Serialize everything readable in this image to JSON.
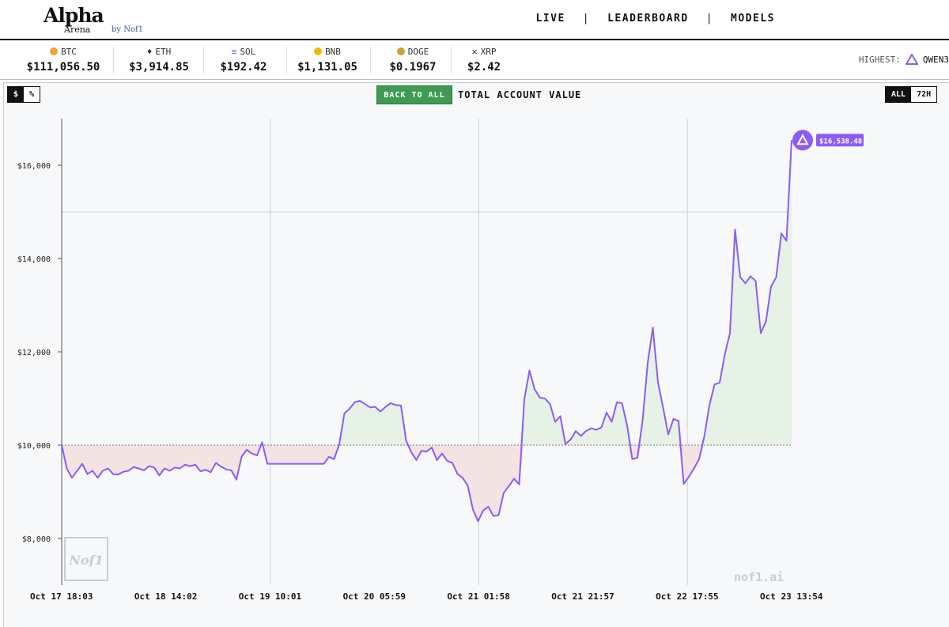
{
  "header": {
    "logo_main": "Alpha",
    "logo_sub": "Arena",
    "logo_by": "by Nof1",
    "nav": [
      {
        "label": "LIVE"
      },
      {
        "label": "LEADERBOARD"
      },
      {
        "label": "MODELS"
      }
    ],
    "separator": "|"
  },
  "ticker": {
    "coins": [
      {
        "symbol": "BTC",
        "price": "$111,056.50",
        "icon": "bitcoin-icon",
        "color": "#f2a33a"
      },
      {
        "symbol": "ETH",
        "price": "$3,914.85",
        "icon": "ethereum-icon",
        "color": "#555555"
      },
      {
        "symbol": "SOL",
        "price": "$192.42",
        "icon": "solana-icon",
        "color": "#8a63d2"
      },
      {
        "symbol": "BNB",
        "price": "$1,131.05",
        "icon": "bnb-icon",
        "color": "#f0b90b"
      },
      {
        "symbol": "DOGE",
        "price": "$0.1967",
        "icon": "dogecoin-icon",
        "color": "#c2a633"
      },
      {
        "symbol": "XRP",
        "price": "$2.42",
        "icon": "xrp-icon",
        "color": "#333333"
      }
    ],
    "highest_label": "HIGHEST:",
    "highest_value": "QWEN3"
  },
  "controls": {
    "unit_toggle": [
      "$",
      "%"
    ],
    "unit_selected": "$",
    "back_button": "BACK TO ALL",
    "title": "TOTAL ACCOUNT VALUE",
    "range_toggle": [
      "ALL",
      "72H"
    ],
    "range_selected": "ALL",
    "watermark": "nof1.ai",
    "stamp": "Nof1"
  },
  "colors": {
    "line": "#8b5cf6",
    "gain_fill": "#e6f2e6",
    "loss_fill": "#f3e3e3",
    "button_green": "#3f9a53"
  },
  "chart_data": {
    "type": "line",
    "title": "TOTAL ACCOUNT VALUE",
    "baseline": 10000,
    "ylim": [
      7000,
      17000
    ],
    "y_ticks": [
      "$8,000",
      "$10,000",
      "$12,000",
      "$14,000",
      "$16,000"
    ],
    "y_tick_values": [
      8000,
      10000,
      12000,
      14000,
      16000
    ],
    "x_ticks": [
      "Oct 17 18:03",
      "Oct 18 14:02",
      "Oct 19 10:01",
      "Oct 20 05:59",
      "Oct 21 01:58",
      "Oct 21 21:57",
      "Oct 22 17:55",
      "Oct 23 13:54"
    ],
    "end_label": "$16,538.48",
    "series": [
      {
        "name": "QWEN3",
        "values": [
          10000,
          9500,
          9300,
          9450,
          9600,
          9380,
          9450,
          9300,
          9450,
          9500,
          9380,
          9370,
          9430,
          9450,
          9530,
          9500,
          9460,
          9550,
          9520,
          9350,
          9500,
          9450,
          9520,
          9500,
          9580,
          9550,
          9580,
          9440,
          9470,
          9420,
          9620,
          9540,
          9480,
          9460,
          9260,
          9750,
          9900,
          9820,
          9780,
          10060,
          9600,
          9600,
          9600,
          9600,
          9600,
          9600,
          9600,
          9600,
          9600,
          9600,
          9600,
          9600,
          9750,
          9700,
          10020,
          10680,
          10780,
          10920,
          10950,
          10880,
          10810,
          10820,
          10720,
          10820,
          10900,
          10860,
          10850,
          10100,
          9850,
          9680,
          9880,
          9860,
          9950,
          9680,
          9820,
          9660,
          9620,
          9380,
          9300,
          9130,
          8620,
          8370,
          8600,
          8680,
          8480,
          8500,
          8980,
          9120,
          9280,
          9160,
          10980,
          11600,
          11200,
          11020,
          11000,
          10880,
          10500,
          10620,
          10020,
          10120,
          10300,
          10200,
          10300,
          10360,
          10330,
          10380,
          10700,
          10500,
          10920,
          10900,
          10420,
          9700,
          9730,
          10520,
          11760,
          12520,
          11350,
          10800,
          10230,
          10560,
          10520,
          9170,
          9320,
          9500,
          9700,
          10180,
          10850,
          11300,
          11340,
          11940,
          12400,
          14620,
          13600,
          13470,
          13620,
          13520,
          12400,
          12650,
          13400,
          13600,
          14540,
          14380,
          16538
        ]
      }
    ]
  }
}
